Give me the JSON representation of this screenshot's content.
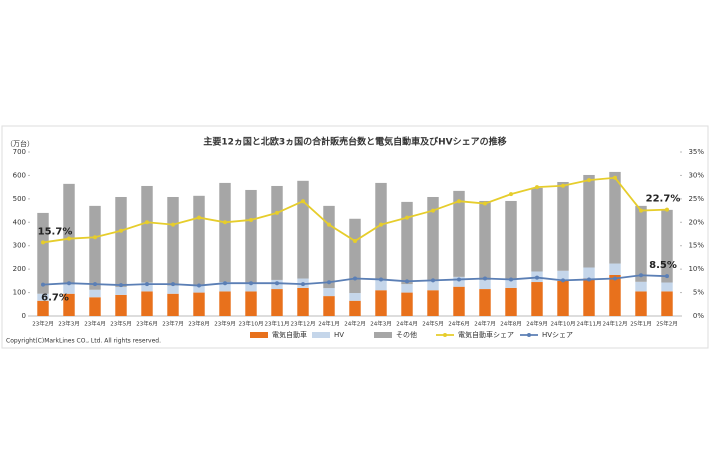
{
  "chart_data": {
    "type": "bar",
    "title": "主要12ヵ国と北欧3ヵ国の合計販売台数と電気自動車及びHVシェアの推移",
    "y_label": "（万台）",
    "annotation": "Copyright(C)MarkLines CO., Ltd. All rights reserved.",
    "categories": [
      "23年2月",
      "23年3月",
      "23年4月",
      "23年5月",
      "23年6月",
      "23年7月",
      "23年8月",
      "23年9月",
      "23年10月",
      "23年11月",
      "23年12月",
      "24年1月",
      "24年2月",
      "24年3月",
      "24年4月",
      "24年5月",
      "24年6月",
      "24年7月",
      "24年8月",
      "24年9月",
      "24年10月",
      "24年11月",
      "24年12月",
      "25年1月",
      "25年2月"
    ],
    "series": [
      {
        "name": "電気自動車",
        "type": "bar",
        "color": "#e8711c",
        "values": [
          65,
          95,
          80,
          90,
          105,
          95,
          100,
          105,
          105,
          115,
          120,
          85,
          65,
          110,
          100,
          110,
          125,
          115,
          120,
          145,
          150,
          160,
          175,
          105,
          105
        ]
      },
      {
        "name": "HV",
        "type": "bar",
        "color": "#c5d6ea",
        "values": [
          30,
          40,
          32,
          34,
          38,
          35,
          33,
          40,
          38,
          39,
          40,
          34,
          33,
          44,
          36,
          39,
          42,
          39,
          38,
          45,
          43,
          47,
          49,
          41,
          38
        ]
      },
      {
        "name": "その他",
        "type": "bar",
        "color": "#a6a6a6",
        "values": [
          345,
          429,
          358,
          384,
          412,
          378,
          380,
          423,
          395,
          401,
          417,
          351,
          317,
          414,
          351,
          359,
          367,
          337,
          333,
          357,
          379,
          395,
          391,
          324,
          310
        ]
      },
      {
        "name": "電気自動車シェア",
        "type": "line",
        "axis": "y2",
        "color": "#e6cd2c",
        "values": [
          15.7,
          16.5,
          16.8,
          18.2,
          20,
          19.5,
          21,
          20,
          20.5,
          22,
          24.5,
          19.5,
          16,
          19.5,
          21,
          22.5,
          24.5,
          24,
          26,
          27.5,
          27.8,
          29,
          29.5,
          22.5,
          22.7
        ],
        "value_labels": [
          "15.7%",
          null,
          null,
          null,
          null,
          null,
          null,
          null,
          null,
          null,
          null,
          null,
          null,
          null,
          null,
          null,
          null,
          null,
          null,
          null,
          null,
          null,
          null,
          null,
          "22.7%"
        ]
      },
      {
        "name": "HVシェア",
        "type": "line",
        "axis": "y2",
        "color": "#5b7fb5",
        "values": [
          6.7,
          7,
          6.8,
          6.6,
          6.8,
          6.8,
          6.5,
          7,
          7,
          7,
          6.8,
          7.2,
          8,
          7.8,
          7.4,
          7.6,
          7.8,
          8,
          7.8,
          8.2,
          7.6,
          7.8,
          8,
          8.7,
          8.5
        ],
        "value_labels": [
          "6.7%",
          null,
          null,
          null,
          null,
          null,
          null,
          null,
          null,
          null,
          null,
          null,
          null,
          null,
          null,
          null,
          null,
          null,
          null,
          null,
          null,
          null,
          null,
          null,
          "8.5%"
        ]
      }
    ],
    "ylim": [
      0,
      700
    ],
    "yticks": [
      0,
      100,
      200,
      300,
      400,
      500,
      600,
      700
    ],
    "y2lim": [
      0,
      35
    ],
    "y2ticks": [
      {
        "value": 0,
        "label": "0%"
      },
      {
        "value": 5,
        "label": "5%"
      },
      {
        "value": 10,
        "label": "10%"
      },
      {
        "value": 15,
        "label": "15%"
      },
      {
        "value": 20,
        "label": "20%"
      },
      {
        "value": 25,
        "label": "25%"
      },
      {
        "value": 30,
        "label": "30%"
      },
      {
        "value": 35,
        "label": "35%"
      }
    ],
    "grid": false
  }
}
